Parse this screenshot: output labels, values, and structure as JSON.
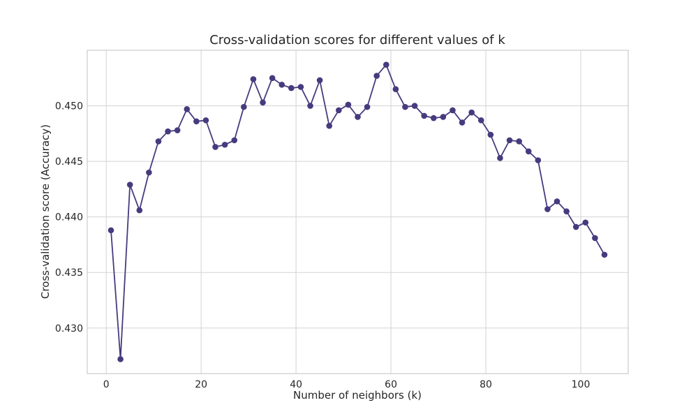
{
  "chart_data": {
    "type": "line",
    "title": "Cross-validation scores for different values of k",
    "xlabel": "Number of neighbors (k)",
    "ylabel": "Cross-validation score (Accuracy)",
    "xlim": [
      -4,
      110
    ],
    "ylim": [
      0.4259,
      0.455
    ],
    "xticks": [
      0,
      20,
      40,
      60,
      80,
      100
    ],
    "yticks": [
      0.43,
      0.435,
      0.44,
      0.445,
      0.45
    ],
    "xtick_labels": [
      "0",
      "20",
      "40",
      "60",
      "80",
      "100"
    ],
    "ytick_labels": [
      "0.430",
      "0.435",
      "0.440",
      "0.445",
      "0.450"
    ],
    "grid": true,
    "color": "#473a7e",
    "marker": "circle",
    "series": [
      {
        "x": [
          1,
          3,
          5,
          7,
          9,
          11,
          13,
          15,
          17,
          19,
          21,
          23,
          25,
          27,
          29,
          31,
          33,
          35,
          37,
          39,
          41,
          43,
          45,
          47,
          49,
          51,
          53,
          55,
          57,
          59,
          61,
          63,
          65,
          67,
          69,
          71,
          73,
          75,
          77,
          79,
          81,
          83,
          85,
          87,
          89,
          91,
          93,
          95,
          97,
          99,
          101,
          103,
          105
        ],
        "values": [
          0.4388,
          0.4272,
          0.4429,
          0.4406,
          0.444,
          0.4468,
          0.4477,
          0.4478,
          0.4497,
          0.4486,
          0.4487,
          0.4463,
          0.4465,
          0.4469,
          0.4499,
          0.4524,
          0.4503,
          0.4525,
          0.4519,
          0.4516,
          0.4517,
          0.45,
          0.4523,
          0.4482,
          0.4496,
          0.4501,
          0.449,
          0.4499,
          0.4527,
          0.4537,
          0.4515,
          0.4499,
          0.45,
          0.4491,
          0.4489,
          0.449,
          0.4496,
          0.4485,
          0.4494,
          0.4487,
          0.4474,
          0.4453,
          0.4469,
          0.4468,
          0.4459,
          0.4451,
          0.4407,
          0.4414,
          0.4405,
          0.4391,
          0.4395,
          0.4381,
          0.4366
        ]
      }
    ]
  }
}
